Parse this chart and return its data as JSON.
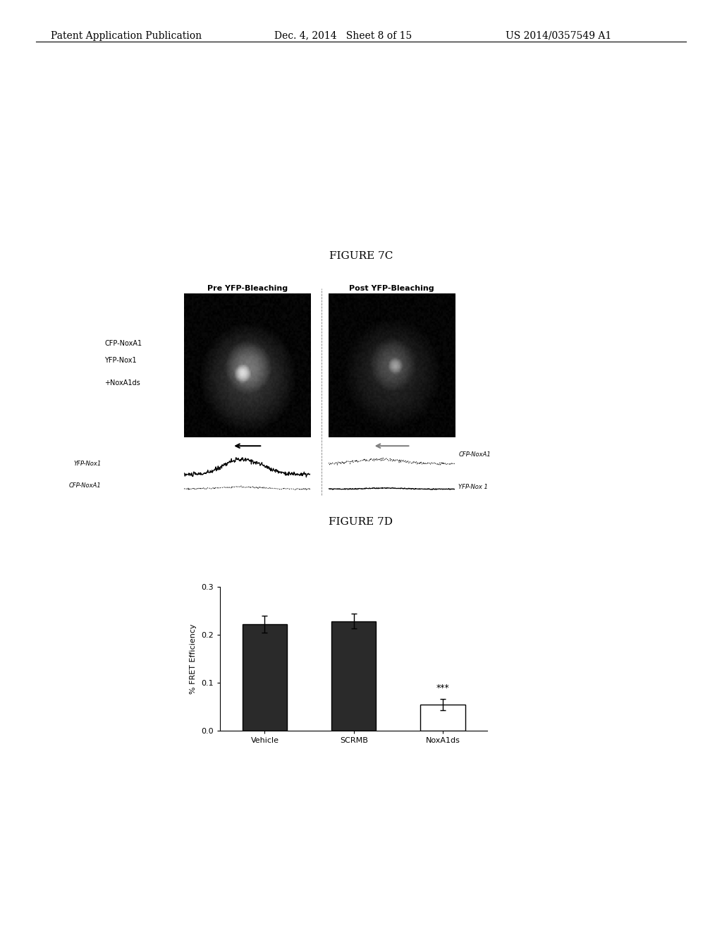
{
  "header_left": "Patent Application Publication",
  "header_mid": "Dec. 4, 2014   Sheet 8 of 15",
  "header_right": "US 2014/0357549 A1",
  "fig7c_title": "FIGURE 7C",
  "fig7d_title": "FIGURE 7D",
  "pre_label": "Pre YFP-Bleaching",
  "post_label": "Post YFP-Bleaching",
  "left_label_line1": "CFP-NoxA1",
  "left_label_line2": "YFP-Nox1",
  "left_label_line3": "+NoxA1ds",
  "trace_left_label1": "YFP-Nox1",
  "trace_left_label2": "CFP-NoxA1",
  "trace_right_label1": "CFP-NoxA1",
  "trace_right_label2": "YFP-Nox 1",
  "bar_categories": [
    "Vehicle",
    "SCRMB",
    "NoxA1ds"
  ],
  "bar_values": [
    0.222,
    0.228,
    0.055
  ],
  "bar_errors": [
    0.018,
    0.015,
    0.012
  ],
  "bar_colors": [
    "#2a2a2a",
    "#2a2a2a",
    "#ffffff"
  ],
  "bar_edge_colors": [
    "#000000",
    "#000000",
    "#000000"
  ],
  "ylabel": "% FRET Efficiency",
  "ylim": [
    0.0,
    0.3
  ],
  "yticks": [
    0.0,
    0.1,
    0.2,
    0.3
  ],
  "significance_label": "***",
  "background_color": "#ffffff",
  "header_fontsize": 10,
  "fig_title_fontsize": 11
}
